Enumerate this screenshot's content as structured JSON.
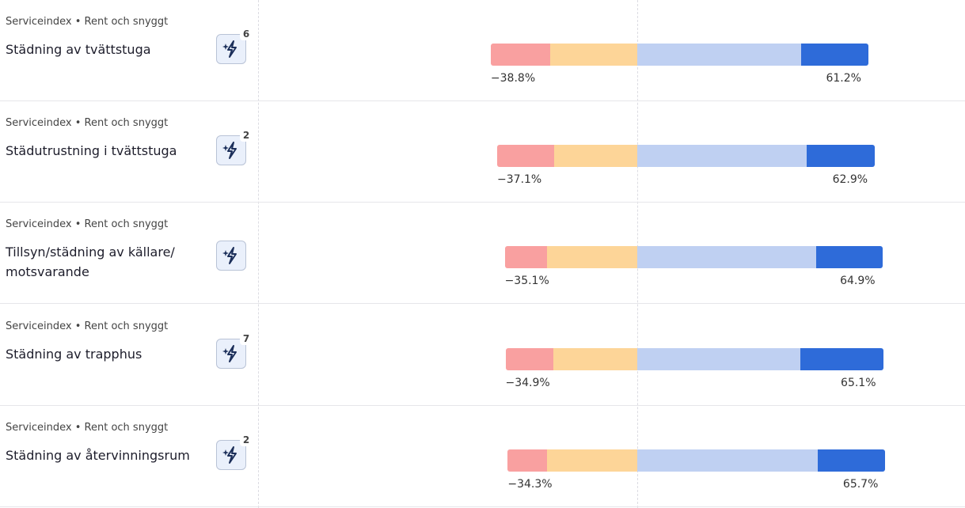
{
  "rows": [
    {
      "category": "Serviceindex • Rent och snyggt",
      "title": "Städning av tvättstuga",
      "badge": 6,
      "segments": [
        15.8,
        23.0,
        43.3,
        17.9
      ],
      "labels": [
        "−38.8%",
        "61.2%"
      ]
    },
    {
      "category": "Serviceindex • Rent och snyggt",
      "title": "Städutrustning i tvättstuga",
      "badge": 2,
      "segments": [
        15.1,
        22.0,
        44.8,
        18.1
      ],
      "labels": [
        "−37.1%",
        "62.9%"
      ]
    },
    {
      "category": "Serviceindex • Rent och snyggt",
      "title": "Tillsyn/städning av källare/ motsvarande",
      "segments": [
        11.2,
        23.9,
        47.3,
        17.6
      ],
      "labels": [
        "−35.1%",
        "64.9%"
      ]
    },
    {
      "category": "Serviceindex • Rent och snyggt",
      "title": "Städning av trapphus",
      "badge": 7,
      "segments": [
        12.7,
        22.2,
        43.2,
        21.9
      ],
      "labels": [
        "−34.9%",
        "65.1%"
      ]
    },
    {
      "category": "Serviceindex • Rent och snyggt",
      "title": "Städning av återvinningsrum",
      "badge": 2,
      "segments": [
        10.4,
        23.9,
        47.9,
        17.8
      ],
      "labels": [
        "−34.3%",
        "65.7%"
      ]
    }
  ],
  "colors": [
    "#f9a0a0",
    "#fdd598",
    "#bfd0f2",
    "#2e6bd9"
  ]
}
